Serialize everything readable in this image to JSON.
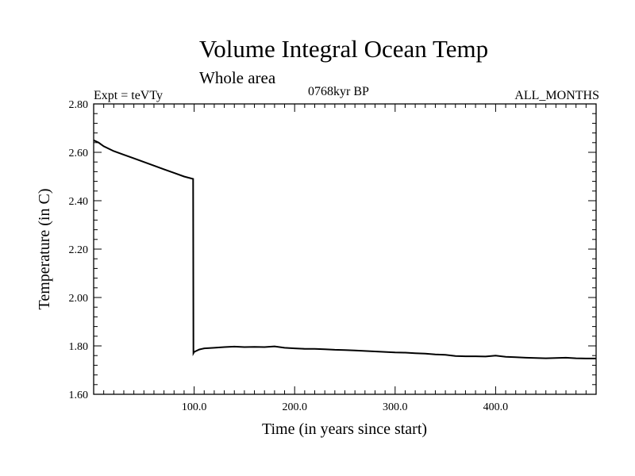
{
  "chart_data": {
    "type": "line",
    "title": "Volume Integral Ocean Temp",
    "subtitle": "Whole area",
    "expt_label": "Expt = teVTy",
    "period_label": "0768kyr BP",
    "months_label": "ALL_MONTHS",
    "xlabel": "Time (in years since start)",
    "ylabel": "Temperature (in C)",
    "xlim": [
      0,
      500
    ],
    "ylim": [
      1.6,
      2.8
    ],
    "xticks": [
      100,
      200,
      300,
      400
    ],
    "xtick_labels": [
      "100.0",
      "200.0",
      "300.0",
      "400.0"
    ],
    "yticks": [
      1.6,
      1.8,
      2.0,
      2.2,
      2.4,
      2.6,
      2.8
    ],
    "ytick_labels": [
      "1.60",
      "1.80",
      "2.00",
      "2.20",
      "2.40",
      "2.60",
      "2.80"
    ],
    "grid": false,
    "line_color": "#000000",
    "series": [
      {
        "x": [
          0,
          5,
          10,
          20,
          30,
          40,
          50,
          60,
          70,
          80,
          90,
          99,
          99.3,
          100,
          105,
          110,
          120,
          130,
          140,
          150,
          160,
          170,
          180,
          190,
          200,
          210,
          220,
          230,
          240,
          250,
          260,
          270,
          280,
          290,
          300,
          310,
          320,
          330,
          340,
          350,
          360,
          370,
          380,
          390,
          400,
          410,
          420,
          430,
          440,
          450,
          460,
          470,
          480,
          490,
          500
        ],
        "y": [
          2.65,
          2.64,
          2.625,
          2.605,
          2.59,
          2.575,
          2.56,
          2.545,
          2.53,
          2.515,
          2.5,
          2.49,
          1.77,
          1.775,
          1.785,
          1.79,
          1.792,
          1.795,
          1.797,
          1.795,
          1.796,
          1.795,
          1.798,
          1.792,
          1.79,
          1.788,
          1.788,
          1.786,
          1.784,
          1.783,
          1.781,
          1.779,
          1.777,
          1.775,
          1.773,
          1.772,
          1.77,
          1.768,
          1.765,
          1.763,
          1.758,
          1.757,
          1.757,
          1.756,
          1.76,
          1.755,
          1.753,
          1.751,
          1.75,
          1.749,
          1.75,
          1.751,
          1.749,
          1.748,
          1.748
        ]
      }
    ]
  }
}
